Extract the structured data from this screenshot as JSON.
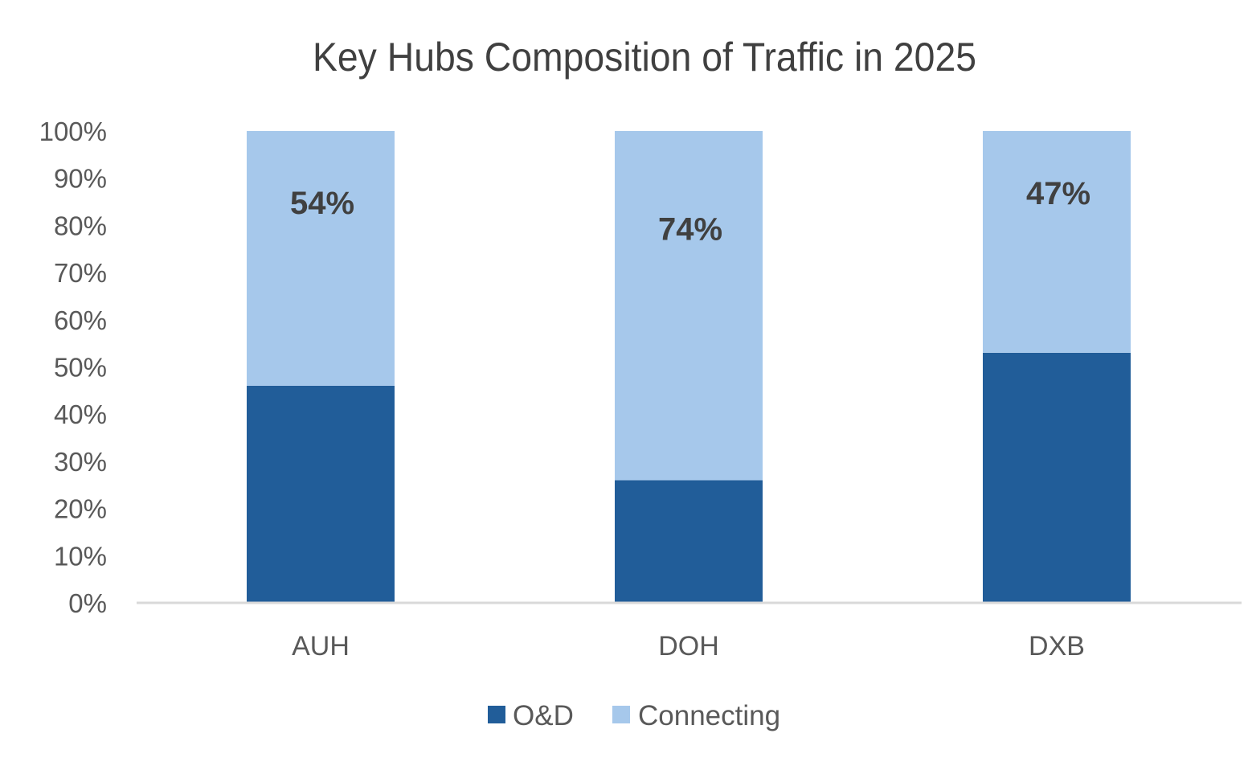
{
  "chart_data": {
    "type": "bar",
    "stacked": true,
    "title": "Key Hubs Composition of Traffic in 2025",
    "xlabel": "",
    "ylabel": "",
    "ylim": [
      0,
      100
    ],
    "y_tick_values": [
      0,
      10,
      20,
      30,
      40,
      50,
      60,
      70,
      80,
      90,
      100
    ],
    "y_tick_labels": [
      "0%",
      "10%",
      "20%",
      "30%",
      "40%",
      "50%",
      "60%",
      "70%",
      "80%",
      "90%",
      "100%"
    ],
    "categories": [
      "AUH",
      "DOH",
      "DXB"
    ],
    "series": [
      {
        "name": "O&D",
        "values": [
          46,
          26,
          53
        ],
        "color": "#215d99",
        "data_labels": [
          "",
          "",
          ""
        ]
      },
      {
        "name": "Connecting",
        "values": [
          54,
          74,
          47
        ],
        "color": "#a6c8eb",
        "data_labels": [
          "54%",
          "74%",
          "47%"
        ]
      }
    ],
    "grid": false,
    "legend": {
      "position": "bottom",
      "entries": [
        "O&D",
        "Connecting"
      ]
    },
    "axis_color": "#d9d9d9"
  }
}
